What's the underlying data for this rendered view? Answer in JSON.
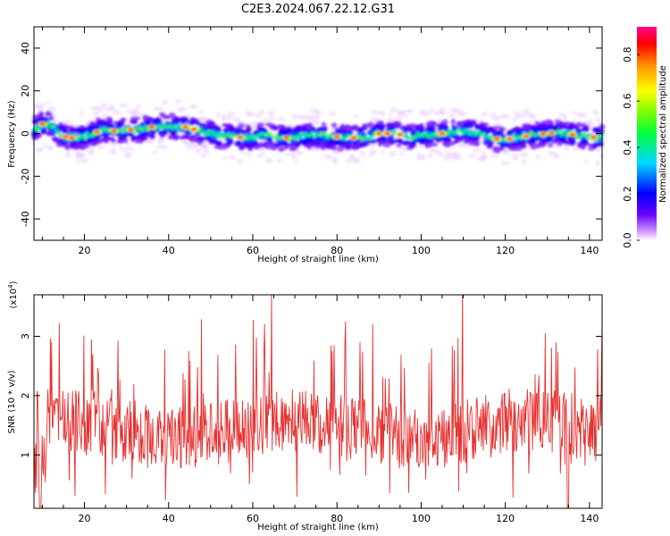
{
  "figure": {
    "title": "C2E3.2024.067.22.12.G31"
  },
  "chart_data": [
    {
      "type": "heatmap",
      "xlabel": "Height of straight line (km)",
      "ylabel": "Frequency (Hz)",
      "xlim": [
        8,
        143
      ],
      "ylim": [
        -50,
        50
      ],
      "xticks": [
        20,
        40,
        60,
        80,
        100,
        120,
        140
      ],
      "yticks": [
        -40,
        -20,
        0,
        20,
        40
      ],
      "colorbar": {
        "label": "Normalized spectral amplitude",
        "range": [
          0,
          0.92
        ],
        "ticks": [
          0.0,
          0.2,
          0.4,
          0.6,
          0.8
        ],
        "colormap": "rainbow (magenta-blue-cyan-green-yellow-red)"
      },
      "ridge": {
        "x": [
          8,
          10,
          12,
          14,
          16,
          18,
          20,
          22,
          24,
          26,
          28,
          30,
          32,
          34,
          36,
          38,
          40,
          42,
          44,
          46,
          48,
          50,
          52,
          54,
          56,
          58,
          60,
          62,
          64,
          66,
          68,
          70,
          72,
          74,
          76,
          78,
          80,
          82,
          84,
          86,
          88,
          90,
          92,
          94,
          96,
          98,
          100,
          102,
          104,
          106,
          108,
          110,
          112,
          114,
          116,
          118,
          120,
          122,
          124,
          126,
          128,
          130,
          132,
          134,
          136,
          138,
          140,
          142
        ],
        "freq": [
          2,
          4.5,
          4,
          0,
          -2,
          -2,
          -1,
          0,
          1.5,
          1.5,
          1,
          2,
          1.5,
          2,
          3,
          3.5,
          3.5,
          3,
          3,
          2,
          1,
          0,
          -1,
          -1,
          -1.5,
          -2,
          -2,
          -1,
          -1,
          -2,
          -2,
          -1.5,
          -1.5,
          -1,
          -1,
          -1.5,
          -1.5,
          -2,
          -2,
          -1.5,
          -1,
          0,
          0,
          0,
          -1,
          -1.5,
          -1,
          -0.5,
          0,
          0,
          0.5,
          1,
          1,
          0,
          -1.5,
          -2.5,
          -3,
          -2,
          -1.5,
          -1,
          -0.5,
          0,
          0.5,
          0,
          -0.5,
          -1,
          -1.5,
          -2
        ]
      }
    },
    {
      "type": "line",
      "xlabel": "Height of straight line (km)",
      "ylabel": "SNR (10 * v/v)",
      "scale_label": "(x10",
      "scale_exp": "4",
      "scale_close": ")",
      "xlim": [
        8,
        143
      ],
      "ylim": [
        0.1,
        3.7
      ],
      "xticks": [
        20,
        40,
        60,
        80,
        100,
        120,
        140
      ],
      "yticks": [
        1,
        2,
        3
      ],
      "color": "#e83030"
    }
  ]
}
